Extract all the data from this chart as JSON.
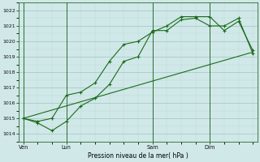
{
  "bg_color": "#d0e8e8",
  "plot_bg_color": "#d0e8e8",
  "grid_color_major": "#a0c4c4",
  "grid_color_minor": "#b8d8d8",
  "line_color": "#1a6b1a",
  "xlabel": "Pression niveau de la mer( hPa )",
  "ylim": [
    1013.5,
    1022.5
  ],
  "yticks": [
    1014,
    1015,
    1016,
    1017,
    1018,
    1019,
    1020,
    1021,
    1022
  ],
  "xtick_labels": [
    "Ven",
    "Lun",
    "Sam",
    "Dim"
  ],
  "xtick_positions": [
    0,
    3,
    9,
    13
  ],
  "vline_positions": [
    0,
    3,
    9,
    13
  ],
  "xlim": [
    -0.3,
    16.3
  ],
  "series1_x": [
    0,
    1,
    2,
    3,
    4,
    5,
    6,
    7,
    8,
    9,
    10,
    11,
    12,
    13,
    14,
    15,
    16
  ],
  "series1_y": [
    1015.0,
    1014.7,
    1014.2,
    1014.8,
    1015.8,
    1016.3,
    1017.2,
    1018.7,
    1019.0,
    1020.7,
    1020.7,
    1021.4,
    1021.5,
    1021.0,
    1021.0,
    1021.5,
    1019.2
  ],
  "series2_x": [
    0,
    1,
    2,
    3,
    4,
    5,
    6,
    7,
    8,
    9,
    10,
    11,
    12,
    13,
    14,
    15,
    16
  ],
  "series2_y": [
    1015.0,
    1014.8,
    1015.0,
    1016.5,
    1016.7,
    1017.3,
    1018.7,
    1019.8,
    1020.0,
    1020.6,
    1021.0,
    1021.6,
    1021.6,
    1021.6,
    1020.7,
    1021.3,
    1019.4
  ],
  "series3_x": [
    0,
    16
  ],
  "series3_y": [
    1015.0,
    1019.3
  ],
  "ylabel_fontsize": 4.5,
  "xlabel_fontsize": 5.5,
  "xtick_fontsize": 4.8,
  "ytick_fontsize": 4.5
}
